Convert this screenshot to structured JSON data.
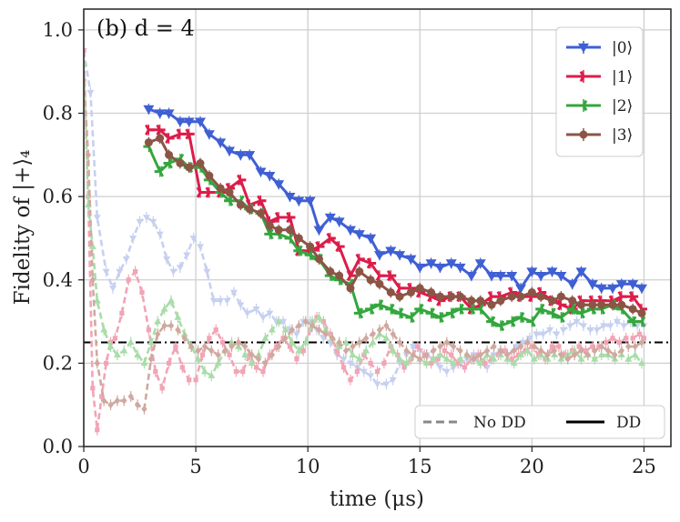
{
  "chart_data": {
    "type": "line",
    "title": "",
    "panel_label": "(b) d = 4",
    "xlabel": "time (μs)",
    "ylabel": "Fidelity of |+⟩₄",
    "xlim": [
      0,
      26.2
    ],
    "ylim": [
      0,
      1.05
    ],
    "xticks": [
      "0",
      "5",
      "10",
      "15",
      "20",
      "25"
    ],
    "yticks": [
      "0.0",
      "0.2",
      "0.4",
      "0.6",
      "0.8",
      "1.0"
    ],
    "grid": true,
    "reference_line": {
      "y": 0.25,
      "style": "dash-dot",
      "color": "#000000"
    },
    "legend_states": {
      "placement": "top-right",
      "entries": [
        {
          "label": "|0⟩",
          "color": "#3f5fd4",
          "marker": "triangle-down"
        },
        {
          "label": "|1⟩",
          "color": "#dc1c4a",
          "marker": "tri-right"
        },
        {
          "label": "|2⟩",
          "color": "#33a73d",
          "marker": "tri-left"
        },
        {
          "label": "|3⟩",
          "color": "#8b5546",
          "marker": "circle"
        }
      ]
    },
    "legend_styles": {
      "placement": "bottom-right",
      "entries": [
        {
          "label": "No DD",
          "style": "dashed",
          "color": "#888888"
        },
        {
          "label": "DD",
          "style": "solid",
          "color": "#000000"
        }
      ]
    },
    "series": [
      {
        "name": "|0⟩",
        "group": "DD",
        "color": "#3f5fd4",
        "marker": "triangle-down",
        "x": [
          2.9,
          3.4,
          3.8,
          4.3,
          4.7,
          5.2,
          5.6,
          6.1,
          6.5,
          7.0,
          7.4,
          7.9,
          8.3,
          8.7,
          9.2,
          9.6,
          10.1,
          10.5,
          11.0,
          11.4,
          11.9,
          12.3,
          12.8,
          13.2,
          13.7,
          14.1,
          14.6,
          15.0,
          15.5,
          15.9,
          16.4,
          16.8,
          17.3,
          17.7,
          18.2,
          18.6,
          19.1,
          19.5,
          20.0,
          20.4,
          20.9,
          21.3,
          21.8,
          22.2,
          22.7,
          23.1,
          23.6,
          24.0,
          24.5,
          24.9
        ],
        "y": [
          0.81,
          0.8,
          0.8,
          0.78,
          0.78,
          0.78,
          0.75,
          0.73,
          0.71,
          0.7,
          0.7,
          0.66,
          0.65,
          0.63,
          0.6,
          0.59,
          0.59,
          0.52,
          0.55,
          0.54,
          0.52,
          0.51,
          0.5,
          0.46,
          0.47,
          0.46,
          0.45,
          0.43,
          0.44,
          0.43,
          0.44,
          0.43,
          0.41,
          0.44,
          0.41,
          0.41,
          0.41,
          0.38,
          0.42,
          0.41,
          0.42,
          0.41,
          0.39,
          0.42,
          0.39,
          0.38,
          0.38,
          0.39,
          0.39,
          0.38
        ]
      },
      {
        "name": "|1⟩",
        "group": "DD",
        "color": "#dc1c4a",
        "marker": "tri-right",
        "x": [
          2.9,
          3.4,
          3.8,
          4.3,
          4.7,
          5.2,
          5.6,
          6.1,
          6.5,
          7.0,
          7.4,
          7.9,
          8.3,
          8.7,
          9.2,
          9.6,
          10.1,
          10.5,
          11.0,
          11.4,
          11.9,
          12.3,
          12.8,
          13.2,
          13.7,
          14.1,
          14.6,
          15.0,
          15.5,
          15.9,
          16.4,
          16.8,
          17.3,
          17.7,
          18.2,
          18.6,
          19.1,
          19.5,
          20.0,
          20.4,
          20.9,
          21.3,
          21.8,
          22.2,
          22.7,
          23.1,
          23.6,
          24.0,
          24.5,
          24.9
        ],
        "y": [
          0.76,
          0.76,
          0.74,
          0.75,
          0.75,
          0.61,
          0.61,
          0.61,
          0.62,
          0.64,
          0.58,
          0.59,
          0.54,
          0.55,
          0.55,
          0.47,
          0.47,
          0.48,
          0.5,
          0.48,
          0.41,
          0.45,
          0.44,
          0.41,
          0.41,
          0.38,
          0.38,
          0.37,
          0.36,
          0.35,
          0.36,
          0.36,
          0.33,
          0.34,
          0.36,
          0.36,
          0.37,
          0.36,
          0.36,
          0.37,
          0.35,
          0.34,
          0.33,
          0.35,
          0.35,
          0.35,
          0.35,
          0.36,
          0.36,
          0.33
        ]
      },
      {
        "name": "|2⟩",
        "group": "DD",
        "color": "#33a73d",
        "marker": "tri-left",
        "x": [
          2.9,
          3.4,
          3.8,
          4.3,
          4.7,
          5.2,
          5.6,
          6.1,
          6.5,
          7.0,
          7.4,
          7.9,
          8.3,
          8.7,
          9.2,
          9.6,
          10.1,
          10.5,
          11.0,
          11.4,
          11.9,
          12.3,
          12.8,
          13.2,
          13.7,
          14.1,
          14.6,
          15.0,
          15.5,
          15.9,
          16.4,
          16.8,
          17.3,
          17.7,
          18.2,
          18.6,
          19.1,
          19.5,
          20.0,
          20.4,
          20.9,
          21.3,
          21.8,
          22.2,
          22.7,
          23.1,
          23.6,
          24.0,
          24.5,
          24.9
        ],
        "y": [
          0.72,
          0.66,
          0.68,
          0.69,
          0.67,
          0.67,
          0.64,
          0.61,
          0.59,
          0.59,
          0.57,
          0.56,
          0.51,
          0.51,
          0.5,
          0.47,
          0.46,
          0.45,
          0.41,
          0.4,
          0.39,
          0.32,
          0.33,
          0.34,
          0.33,
          0.32,
          0.31,
          0.33,
          0.32,
          0.31,
          0.32,
          0.33,
          0.33,
          0.33,
          0.3,
          0.29,
          0.3,
          0.31,
          0.3,
          0.33,
          0.32,
          0.31,
          0.33,
          0.32,
          0.33,
          0.33,
          0.34,
          0.33,
          0.3,
          0.3
        ]
      },
      {
        "name": "|3⟩",
        "group": "DD",
        "color": "#8b5546",
        "marker": "circle",
        "x": [
          2.9,
          3.4,
          3.8,
          4.3,
          4.7,
          5.2,
          5.6,
          6.1,
          6.5,
          7.0,
          7.4,
          7.9,
          8.3,
          8.7,
          9.2,
          9.6,
          10.1,
          10.5,
          11.0,
          11.4,
          11.9,
          12.3,
          12.8,
          13.2,
          13.7,
          14.1,
          14.6,
          15.0,
          15.5,
          15.9,
          16.4,
          16.8,
          17.3,
          17.7,
          18.2,
          18.6,
          19.1,
          19.5,
          20.0,
          20.4,
          20.9,
          21.3,
          21.8,
          22.2,
          22.7,
          23.1,
          23.6,
          24.0,
          24.5,
          24.9
        ],
        "y": [
          0.73,
          0.74,
          0.7,
          0.68,
          0.67,
          0.68,
          0.65,
          0.62,
          0.61,
          0.58,
          0.57,
          0.56,
          0.53,
          0.52,
          0.52,
          0.5,
          0.48,
          0.45,
          0.42,
          0.41,
          0.38,
          0.42,
          0.4,
          0.39,
          0.37,
          0.36,
          0.37,
          0.38,
          0.37,
          0.36,
          0.36,
          0.36,
          0.35,
          0.35,
          0.34,
          0.35,
          0.36,
          0.36,
          0.37,
          0.36,
          0.35,
          0.36,
          0.35,
          0.34,
          0.34,
          0.34,
          0.34,
          0.34,
          0.33,
          0.32
        ]
      },
      {
        "name": "|0⟩",
        "group": "No DD",
        "color": "#c6d0f0",
        "marker": "triangle-down",
        "x": [
          0,
          0.3,
          0.6,
          1.0,
          1.3,
          1.6,
          1.9,
          2.2,
          2.5,
          2.8,
          3.1,
          3.4,
          3.7,
          4.0,
          4.3,
          4.6,
          4.9,
          5.2,
          5.5,
          5.8,
          6.1,
          6.4,
          6.7,
          7.0,
          7.3,
          7.7,
          8.0,
          8.3,
          8.6,
          8.9,
          9.2,
          9.5,
          9.8,
          10.1,
          10.4,
          10.7,
          11.0,
          11.3,
          11.6,
          11.9,
          12.2,
          12.5,
          12.8,
          13.1,
          13.5,
          13.8,
          14.1,
          14.4,
          14.7,
          15.0,
          15.3,
          15.6,
          15.9,
          16.2,
          16.5,
          16.8,
          17.1,
          17.4,
          17.7,
          18.0,
          18.3,
          18.6,
          18.9,
          19.3,
          19.6,
          19.9,
          20.2,
          20.5,
          20.8,
          21.1,
          21.4,
          21.7,
          22.0,
          22.3,
          22.6,
          22.9,
          23.2,
          23.5,
          23.8,
          24.1,
          24.4,
          24.7,
          25.0
        ],
        "y": [
          0.95,
          0.85,
          0.55,
          0.42,
          0.38,
          0.42,
          0.45,
          0.5,
          0.54,
          0.55,
          0.54,
          0.51,
          0.45,
          0.42,
          0.43,
          0.46,
          0.5,
          0.48,
          0.42,
          0.35,
          0.35,
          0.35,
          0.37,
          0.34,
          0.32,
          0.33,
          0.31,
          0.32,
          0.3,
          0.3,
          0.28,
          0.27,
          0.3,
          0.3,
          0.28,
          0.26,
          0.25,
          0.22,
          0.21,
          0.2,
          0.19,
          0.18,
          0.17,
          0.15,
          0.15,
          0.16,
          0.2,
          0.22,
          0.24,
          0.23,
          0.22,
          0.21,
          0.19,
          0.18,
          0.19,
          0.2,
          0.21,
          0.22,
          0.2,
          0.19,
          0.22,
          0.23,
          0.22,
          0.24,
          0.25,
          0.26,
          0.27,
          0.27,
          0.28,
          0.27,
          0.28,
          0.29,
          0.3,
          0.29,
          0.28,
          0.28,
          0.29,
          0.29,
          0.3,
          0.29,
          0.3,
          0.29,
          0.29
        ]
      },
      {
        "name": "|1⟩",
        "group": "No DD",
        "color": "#f2a4b5",
        "marker": "square",
        "x": [
          0,
          0.2,
          0.4,
          0.6,
          0.8,
          1.0,
          1.2,
          1.4,
          1.7,
          2.0,
          2.3,
          2.6,
          2.9,
          3.2,
          3.5,
          3.8,
          4.1,
          4.4,
          4.7,
          5.0,
          5.3,
          5.6,
          5.9,
          6.2,
          6.5,
          6.8,
          7.1,
          7.4,
          7.7,
          8.0,
          8.3,
          8.6,
          8.9,
          9.2,
          9.5,
          9.8,
          10.1,
          10.4,
          10.7,
          11.0,
          11.3,
          11.6,
          11.9,
          12.2,
          12.5,
          12.8,
          13.1,
          13.4,
          13.7,
          14.0,
          14.3,
          14.6,
          14.9,
          15.2,
          15.5,
          15.8,
          16.1,
          16.4,
          16.7,
          17.0,
          17.3,
          17.6,
          17.9,
          18.2,
          18.5,
          18.8,
          19.1,
          19.4,
          19.7,
          20.0,
          20.3,
          20.6,
          20.9,
          21.2,
          21.5,
          21.8,
          22.1,
          22.4,
          22.7,
          23.0,
          23.3,
          23.6,
          23.9,
          24.2,
          24.5,
          24.8,
          25.0
        ],
        "y": [
          0.95,
          0.6,
          0.14,
          0.04,
          0.12,
          0.2,
          0.25,
          0.26,
          0.32,
          0.4,
          0.42,
          0.37,
          0.28,
          0.18,
          0.14,
          0.2,
          0.24,
          0.19,
          0.16,
          0.16,
          0.22,
          0.26,
          0.28,
          0.25,
          0.22,
          0.18,
          0.18,
          0.22,
          0.19,
          0.18,
          0.22,
          0.24,
          0.26,
          0.24,
          0.21,
          0.23,
          0.28,
          0.31,
          0.3,
          0.27,
          0.23,
          0.19,
          0.16,
          0.18,
          0.22,
          0.2,
          0.18,
          0.2,
          0.24,
          0.22,
          0.19,
          0.21,
          0.24,
          0.22,
          0.2,
          0.21,
          0.23,
          0.22,
          0.2,
          0.19,
          0.21,
          0.22,
          0.2,
          0.21,
          0.22,
          0.23,
          0.21,
          0.22,
          0.23,
          0.24,
          0.22,
          0.21,
          0.24,
          0.24,
          0.22,
          0.23,
          0.24,
          0.23,
          0.24,
          0.24,
          0.25,
          0.26,
          0.25,
          0.26,
          0.26,
          0.27,
          0.26
        ]
      },
      {
        "name": "|2⟩",
        "group": "No DD",
        "color": "#a9dca9",
        "marker": "triangle-up",
        "x": [
          0,
          0.2,
          0.4,
          0.6,
          0.9,
          1.2,
          1.5,
          1.8,
          2.1,
          2.4,
          2.7,
          3.0,
          3.3,
          3.6,
          3.9,
          4.2,
          4.5,
          4.8,
          5.1,
          5.4,
          5.7,
          6.0,
          6.3,
          6.6,
          6.9,
          7.2,
          7.5,
          7.8,
          8.1,
          8.4,
          8.7,
          9.0,
          9.3,
          9.6,
          9.9,
          10.2,
          10.5,
          10.8,
          11.1,
          11.4,
          11.7,
          12.0,
          12.3,
          12.6,
          12.9,
          13.2,
          13.5,
          13.8,
          14.1,
          14.4,
          14.7,
          15.0,
          15.3,
          15.6,
          15.9,
          16.2,
          16.5,
          16.8,
          17.1,
          17.4,
          17.7,
          18.0,
          18.3,
          18.6,
          18.9,
          19.2,
          19.5,
          19.8,
          20.1,
          20.4,
          20.7,
          21.0,
          21.3,
          21.6,
          21.9,
          22.2,
          22.5,
          22.8,
          23.1,
          23.4,
          23.7,
          24.0,
          24.3,
          24.6,
          24.9
        ],
        "y": [
          0.92,
          0.58,
          0.48,
          0.35,
          0.28,
          0.24,
          0.22,
          0.23,
          0.25,
          0.22,
          0.2,
          0.25,
          0.3,
          0.33,
          0.35,
          0.31,
          0.27,
          0.24,
          0.21,
          0.18,
          0.17,
          0.2,
          0.23,
          0.25,
          0.24,
          0.22,
          0.2,
          0.22,
          0.26,
          0.28,
          0.3,
          0.28,
          0.25,
          0.23,
          0.25,
          0.3,
          0.31,
          0.28,
          0.26,
          0.24,
          0.25,
          0.22,
          0.21,
          0.23,
          0.25,
          0.27,
          0.26,
          0.23,
          0.21,
          0.2,
          0.22,
          0.21,
          0.2,
          0.21,
          0.22,
          0.21,
          0.2,
          0.21,
          0.22,
          0.21,
          0.2,
          0.22,
          0.21,
          0.22,
          0.21,
          0.2,
          0.22,
          0.23,
          0.21,
          0.22,
          0.21,
          0.22,
          0.21,
          0.22,
          0.23,
          0.21,
          0.22,
          0.21,
          0.22,
          0.22,
          0.21,
          0.22,
          0.21,
          0.22,
          0.2
        ]
      },
      {
        "name": "|3⟩",
        "group": "No DD",
        "color": "#cfa99f",
        "marker": "diamond",
        "x": [
          0,
          0.2,
          0.4,
          0.6,
          0.9,
          1.2,
          1.5,
          1.8,
          2.1,
          2.4,
          2.7,
          3.0,
          3.3,
          3.6,
          3.9,
          4.2,
          4.5,
          4.8,
          5.1,
          5.4,
          5.7,
          6.0,
          6.3,
          6.6,
          6.9,
          7.2,
          7.5,
          7.8,
          8.1,
          8.4,
          8.7,
          9.0,
          9.3,
          9.6,
          9.9,
          10.2,
          10.5,
          10.8,
          11.1,
          11.4,
          11.7,
          12.0,
          12.3,
          12.6,
          12.9,
          13.2,
          13.5,
          13.8,
          14.1,
          14.4,
          14.7,
          15.0,
          15.3,
          15.6,
          15.9,
          16.2,
          16.5,
          16.8,
          17.1,
          17.4,
          17.7,
          18.0,
          18.3,
          18.6,
          18.9,
          19.2,
          19.5,
          19.8,
          20.1,
          20.4,
          20.7,
          21.0,
          21.3,
          21.6,
          21.9,
          22.2,
          22.5,
          22.8,
          23.1,
          23.4,
          23.7,
          24.0,
          24.3,
          24.6,
          24.9
        ],
        "y": [
          0.88,
          0.7,
          0.4,
          0.2,
          0.11,
          0.1,
          0.11,
          0.11,
          0.12,
          0.1,
          0.09,
          0.21,
          0.27,
          0.29,
          0.29,
          0.28,
          0.26,
          0.24,
          0.23,
          0.24,
          0.23,
          0.22,
          0.23,
          0.24,
          0.25,
          0.24,
          0.22,
          0.21,
          0.2,
          0.22,
          0.24,
          0.26,
          0.28,
          0.29,
          0.3,
          0.29,
          0.28,
          0.27,
          0.26,
          0.25,
          0.23,
          0.24,
          0.25,
          0.26,
          0.27,
          0.28,
          0.29,
          0.27,
          0.25,
          0.23,
          0.22,
          0.21,
          0.22,
          0.23,
          0.24,
          0.25,
          0.24,
          0.23,
          0.22,
          0.21,
          0.22,
          0.23,
          0.24,
          0.23,
          0.22,
          0.23,
          0.24,
          0.25,
          0.24,
          0.23,
          0.22,
          0.23,
          0.22,
          0.21,
          0.22,
          0.23,
          0.22,
          0.23,
          0.24,
          0.23,
          0.22,
          0.23,
          0.24,
          0.24,
          0.25
        ]
      }
    ]
  }
}
